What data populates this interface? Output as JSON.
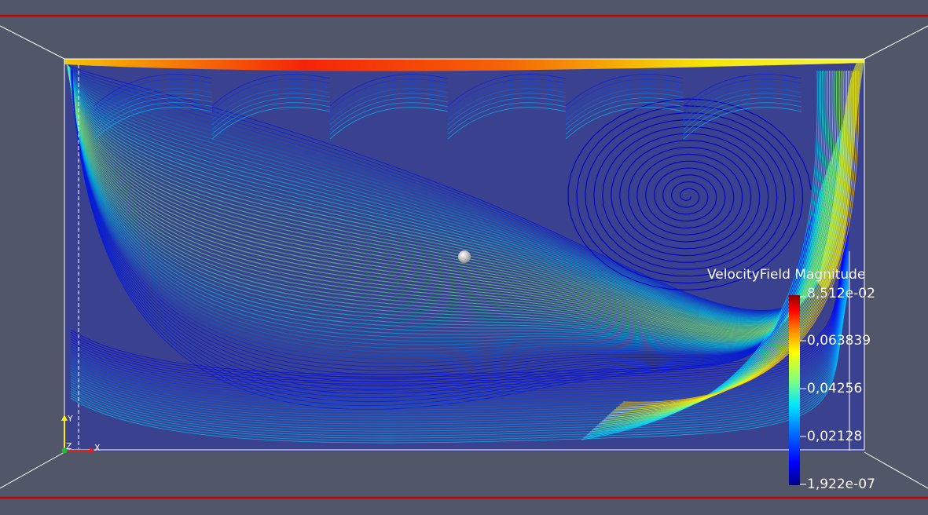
{
  "colors": {
    "background": "#525669",
    "domain_fill": "#3a4290",
    "frame_edge": "#cc0000",
    "outline": "#ffffff",
    "colormap": [
      "#00008b",
      "#0000ff",
      "#0080ff",
      "#00e5ff",
      "#80ff80",
      "#ffff00",
      "#ff8000",
      "#ff0000",
      "#8b0000"
    ]
  },
  "legend": {
    "title": "VelocityField Magnitude",
    "labels": [
      "8,512e-02",
      "0,063839",
      "0,04256",
      "0,02128",
      "1,922e-07"
    ]
  },
  "axes": {
    "x": "X",
    "y": "Y",
    "z": "Z"
  },
  "icons": {
    "orientation_axes": "xyz-axes-icon",
    "probe": "sphere-probe-icon"
  }
}
